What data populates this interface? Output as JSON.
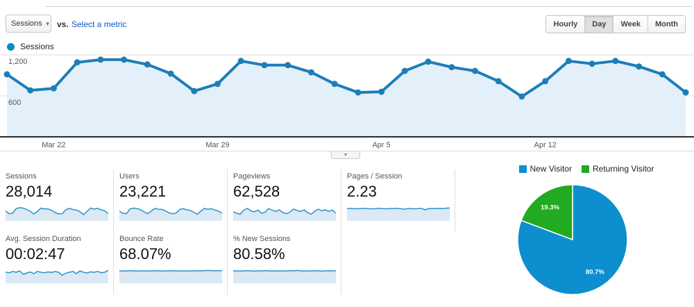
{
  "metric_selector": {
    "primary": "Sessions",
    "vs_label": "vs.",
    "select_metric_label": "Select a metric"
  },
  "interval_buttons": [
    {
      "label": "Hourly",
      "selected": false
    },
    {
      "label": "Day",
      "selected": true
    },
    {
      "label": "Week",
      "selected": false
    },
    {
      "label": "Month",
      "selected": false
    }
  ],
  "legend": {
    "label": "Sessions",
    "color": "#058dc7"
  },
  "chart_data": [
    {
      "type": "line",
      "title": "Sessions by day",
      "x": [
        "Mar 20",
        "Mar 21",
        "Mar 22",
        "Mar 23",
        "Mar 24",
        "Mar 25",
        "Mar 26",
        "Mar 27",
        "Mar 28",
        "Mar 29",
        "Mar 30",
        "Mar 31",
        "Apr 1",
        "Apr 2",
        "Apr 3",
        "Apr 4",
        "Apr 5",
        "Apr 6",
        "Apr 7",
        "Apr 8",
        "Apr 9",
        "Apr 10",
        "Apr 11",
        "Apr 12",
        "Apr 13",
        "Apr 14",
        "Apr 15",
        "Apr 16",
        "Apr 17",
        "Apr 18"
      ],
      "values": [
        915,
        680,
        710,
        1090,
        1130,
        1130,
        1060,
        925,
        670,
        775,
        1110,
        1050,
        1050,
        945,
        775,
        650,
        660,
        965,
        1100,
        1020,
        965,
        815,
        590,
        815,
        1110,
        1070,
        1110,
        1030,
        915,
        650
      ],
      "x_ticks": [
        {
          "index": 2,
          "label": "Mar 22"
        },
        {
          "index": 9,
          "label": "Mar 29"
        },
        {
          "index": 16,
          "label": "Apr 5"
        },
        {
          "index": 23,
          "label": "Apr 12"
        }
      ],
      "y_ticks": [
        {
          "value": 1200,
          "label": "1,200"
        },
        {
          "value": 600,
          "label": "600"
        }
      ],
      "ylim": [
        0,
        1240
      ],
      "grid": true,
      "legend_position": "top-left",
      "line_color": "#1d7eb7",
      "fill_color": "#e4f0f9"
    },
    {
      "type": "pie",
      "title": "New vs Returning Visitors",
      "legend_position": "top",
      "slices": [
        {
          "label": "New Visitor",
          "value": 80.7,
          "display": "80.7%",
          "color": "#0d8ecf"
        },
        {
          "label": "Returning Visitor",
          "value": 19.3,
          "display": "19.3%",
          "color": "#22aa22"
        }
      ]
    }
  ],
  "metric_cards": [
    {
      "label": "Sessions",
      "value": "28,014",
      "spark": [
        0.62,
        0.42,
        0.45,
        0.78,
        0.85,
        0.82,
        0.72,
        0.58,
        0.4,
        0.58,
        0.82,
        0.76,
        0.76,
        0.66,
        0.5,
        0.4,
        0.42,
        0.7,
        0.8,
        0.72,
        0.68,
        0.56,
        0.35,
        0.58,
        0.82,
        0.75,
        0.8,
        0.7,
        0.62,
        0.42
      ]
    },
    {
      "label": "Users",
      "value": "23,221",
      "spark": [
        0.6,
        0.45,
        0.42,
        0.75,
        0.82,
        0.78,
        0.7,
        0.55,
        0.42,
        0.6,
        0.8,
        0.74,
        0.73,
        0.62,
        0.48,
        0.42,
        0.45,
        0.72,
        0.78,
        0.7,
        0.65,
        0.52,
        0.38,
        0.6,
        0.8,
        0.73,
        0.78,
        0.68,
        0.6,
        0.45
      ]
    },
    {
      "label": "Pageviews",
      "value": "62,528",
      "spark": [
        0.55,
        0.45,
        0.38,
        0.68,
        0.8,
        0.62,
        0.55,
        0.68,
        0.45,
        0.52,
        0.78,
        0.68,
        0.58,
        0.7,
        0.5,
        0.42,
        0.52,
        0.75,
        0.65,
        0.58,
        0.7,
        0.5,
        0.38,
        0.58,
        0.75,
        0.62,
        0.7,
        0.58,
        0.68,
        0.45
      ]
    },
    {
      "label": "Pages / Session",
      "value": "2.23",
      "spark": [
        0.78,
        0.8,
        0.77,
        0.79,
        0.78,
        0.8,
        0.78,
        0.76,
        0.78,
        0.8,
        0.78,
        0.77,
        0.79,
        0.78,
        0.8,
        0.78,
        0.74,
        0.78,
        0.79,
        0.77,
        0.78,
        0.8,
        0.7,
        0.78,
        0.79,
        0.78,
        0.8,
        0.78,
        0.81,
        0.83
      ]
    },
    {
      "label": "Avg. Session Duration",
      "value": "00:02:47",
      "spark": [
        0.72,
        0.66,
        0.76,
        0.7,
        0.8,
        0.55,
        0.65,
        0.72,
        0.6,
        0.76,
        0.7,
        0.66,
        0.73,
        0.68,
        0.76,
        0.7,
        0.48,
        0.64,
        0.7,
        0.76,
        0.6,
        0.8,
        0.7,
        0.65,
        0.73,
        0.7,
        0.76,
        0.67,
        0.7,
        0.85
      ]
    },
    {
      "label": "Bounce Rate",
      "value": "68.07%",
      "spark": [
        0.8,
        0.79,
        0.8,
        0.81,
        0.8,
        0.79,
        0.8,
        0.8,
        0.79,
        0.8,
        0.81,
        0.8,
        0.79,
        0.8,
        0.8,
        0.81,
        0.8,
        0.79,
        0.8,
        0.8,
        0.79,
        0.81,
        0.8,
        0.8,
        0.82,
        0.83,
        0.82,
        0.81,
        0.82,
        0.81
      ]
    },
    {
      "label": "% New Sessions",
      "value": "80.58%",
      "spark": [
        0.8,
        0.8,
        0.79,
        0.8,
        0.81,
        0.8,
        0.79,
        0.8,
        0.8,
        0.81,
        0.8,
        0.79,
        0.8,
        0.8,
        0.79,
        0.8,
        0.81,
        0.8,
        0.84,
        0.8,
        0.79,
        0.8,
        0.8,
        0.81,
        0.8,
        0.79,
        0.8,
        0.81,
        0.8,
        0.8
      ]
    }
  ],
  "colors": {
    "line_blue": "#1d7eb7",
    "area_blue": "#e4f0f9",
    "spark_line": "#2d93c8",
    "spark_fill": "#dbe9f5",
    "pie_blue": "#0d8ecf",
    "pie_green": "#22aa22",
    "axis": "#2b2b2b",
    "grid": "#dcdcdc"
  }
}
